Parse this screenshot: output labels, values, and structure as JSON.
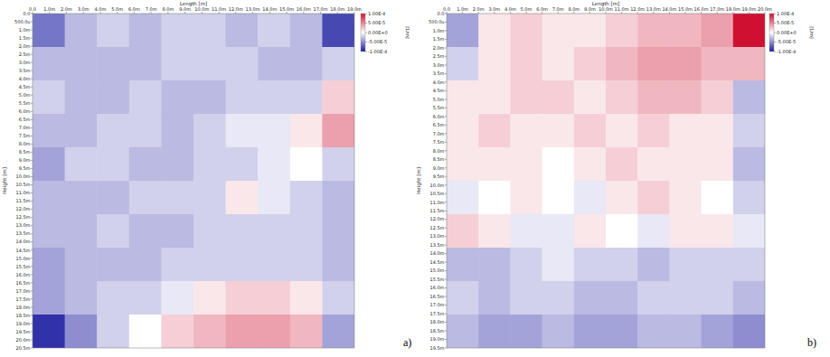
{
  "chart_data": [
    {
      "type": "heatmap",
      "panel": "a)",
      "x_label": "Length [m]",
      "y_label": "Height [m]",
      "xlim": [
        0,
        19
      ],
      "ylim": [
        0,
        20.5
      ],
      "xticks": [
        {
          "value": 0,
          "label": "0.0"
        },
        {
          "value": 1,
          "label": "1.0m"
        },
        {
          "value": 2,
          "label": "2.0m"
        },
        {
          "value": 3,
          "label": "3.0m"
        },
        {
          "value": 4,
          "label": "4.0m"
        },
        {
          "value": 5,
          "label": "5.0m"
        },
        {
          "value": 6,
          "label": "6.0m"
        },
        {
          "value": 7,
          "label": "7.0m"
        },
        {
          "value": 8,
          "label": "8.0m"
        },
        {
          "value": 9,
          "label": "9.0m"
        },
        {
          "value": 10,
          "label": "10.0m"
        },
        {
          "value": 11,
          "label": "11.0m"
        },
        {
          "value": 12,
          "label": "12.0m"
        },
        {
          "value": 13,
          "label": "13.0m"
        },
        {
          "value": 14,
          "label": "14.0m"
        },
        {
          "value": 15,
          "label": "15.0m"
        },
        {
          "value": 16,
          "label": "16.0m"
        },
        {
          "value": 17,
          "label": "17.0m"
        },
        {
          "value": 18,
          "label": "18.0m"
        },
        {
          "value": 19,
          "label": "19.0m"
        }
      ],
      "yticks": [
        {
          "value": 0,
          "label": "0.0"
        },
        {
          "value": 0.5,
          "label": "500.0u"
        },
        {
          "value": 1,
          "label": "1.0m"
        },
        {
          "value": 1.5,
          "label": "1.5m"
        },
        {
          "value": 2,
          "label": "2.0m"
        },
        {
          "value": 2.5,
          "label": "2.5m"
        },
        {
          "value": 3,
          "label": "3.0m"
        },
        {
          "value": 3.5,
          "label": "3.5m"
        },
        {
          "value": 4,
          "label": "4.0m"
        },
        {
          "value": 4.5,
          "label": "4.5m"
        },
        {
          "value": 5,
          "label": "5.0m"
        },
        {
          "value": 5.5,
          "label": "5.5m"
        },
        {
          "value": 6,
          "label": "6.0m"
        },
        {
          "value": 6.5,
          "label": "6.5m"
        },
        {
          "value": 7,
          "label": "7.0m"
        },
        {
          "value": 7.5,
          "label": "7.5m"
        },
        {
          "value": 8,
          "label": "8.0m"
        },
        {
          "value": 8.5,
          "label": "8.5m"
        },
        {
          "value": 9,
          "label": "9.0m"
        },
        {
          "value": 9.5,
          "label": "9.5m"
        },
        {
          "value": 10,
          "label": "10.0m"
        },
        {
          "value": 10.5,
          "label": "10.5m"
        },
        {
          "value": 11,
          "label": "11.0m"
        },
        {
          "value": 11.5,
          "label": "11.5m"
        },
        {
          "value": 12,
          "label": "12.0m"
        },
        {
          "value": 12.5,
          "label": "12.5m"
        },
        {
          "value": 13,
          "label": "13.0m"
        },
        {
          "value": 13.5,
          "label": "13.5m"
        },
        {
          "value": 14,
          "label": "14.0m"
        },
        {
          "value": 14.5,
          "label": "14.5m"
        },
        {
          "value": 15,
          "label": "15.0m"
        },
        {
          "value": 15.5,
          "label": "15.5m"
        },
        {
          "value": 16,
          "label": "16.0m"
        },
        {
          "value": 16.5,
          "label": "16.5m"
        },
        {
          "value": 17,
          "label": "17.0m"
        },
        {
          "value": 17.5,
          "label": "17.5m"
        },
        {
          "value": 18,
          "label": "18.0m"
        },
        {
          "value": 18.5,
          "label": "18.5m"
        },
        {
          "value": 19,
          "label": "19.0m"
        },
        {
          "value": 19.5,
          "label": "19.5m"
        },
        {
          "value": 20,
          "label": "20.0m"
        },
        {
          "value": 20.5,
          "label": "20.5m"
        }
      ],
      "colorbar": {
        "label": "[1/m]",
        "range": [
          -0.0001,
          0.0001
        ],
        "ticks": [
          {
            "value": 0.0001,
            "label": "1.00E-4"
          },
          {
            "value": 5e-05,
            "label": "5.00E-5"
          },
          {
            "value": 0,
            "label": "0.00E+0"
          },
          {
            "value": -5e-05,
            "label": "-5.00E-5"
          },
          {
            "value": -0.0001,
            "label": "-1.00E-4"
          }
        ]
      },
      "cells": [
        [
          -6e-05,
          -3e-05,
          -2e-05,
          -3e-05,
          -2e-05,
          -2e-05,
          -3e-05,
          -2e-05,
          -3e-05,
          -8e-05
        ],
        [
          -3e-05,
          -3e-05,
          -3e-05,
          -3e-05,
          -2e-05,
          -2e-05,
          -2e-05,
          -3e-05,
          -3e-05,
          -2e-05
        ],
        [
          -2e-05,
          -3e-05,
          -3e-05,
          -2e-05,
          -3e-05,
          -3e-05,
          -2e-05,
          -2e-05,
          -2e-05,
          2e-05
        ],
        [
          -3e-05,
          -3e-05,
          -2e-05,
          -2e-05,
          -3e-05,
          -2e-05,
          -1e-05,
          -1e-05,
          1e-05,
          4e-05
        ],
        [
          -4e-05,
          -2e-05,
          -2e-05,
          -3e-05,
          -3e-05,
          -2e-05,
          -2e-05,
          -1e-05,
          0,
          -2e-05
        ],
        [
          -3e-05,
          -3e-05,
          -3e-05,
          -2e-05,
          -2e-05,
          -2e-05,
          1e-05,
          -1e-05,
          -2e-05,
          -3e-05
        ],
        [
          -3e-05,
          -3e-05,
          -2e-05,
          -3e-05,
          -3e-05,
          -2e-05,
          -2e-05,
          -2e-05,
          -2e-05,
          -3e-05
        ],
        [
          -4e-05,
          -3e-05,
          -3e-05,
          -3e-05,
          -2e-05,
          -2e-05,
          -2e-05,
          -2e-05,
          -2e-05,
          -3e-05
        ],
        [
          -4e-05,
          -3e-05,
          -2e-05,
          -2e-05,
          -1e-05,
          1e-05,
          2e-05,
          2e-05,
          1e-05,
          -2e-05
        ],
        [
          -9e-05,
          -5e-05,
          -2e-05,
          0,
          2e-05,
          3e-05,
          4e-05,
          4e-05,
          3e-05,
          -4e-05
        ]
      ]
    },
    {
      "type": "heatmap",
      "panel": "b)",
      "x_label": "Length [m]",
      "y_label": "Height [m]",
      "xlim": [
        0,
        20
      ],
      "ylim": [
        0,
        19.5
      ],
      "xticks": [
        {
          "value": 0,
          "label": "0.0"
        },
        {
          "value": 1,
          "label": "1.0m"
        },
        {
          "value": 2,
          "label": "2.0m"
        },
        {
          "value": 3,
          "label": "3.0m"
        },
        {
          "value": 4,
          "label": "4.0m"
        },
        {
          "value": 5,
          "label": "5.0m"
        },
        {
          "value": 6,
          "label": "6.0m"
        },
        {
          "value": 7,
          "label": "7.0m"
        },
        {
          "value": 8,
          "label": "8.0m"
        },
        {
          "value": 9,
          "label": "9.0m"
        },
        {
          "value": 10,
          "label": "10.0m"
        },
        {
          "value": 11,
          "label": "11.0m"
        },
        {
          "value": 12,
          "label": "12.0m"
        },
        {
          "value": 13,
          "label": "13.0m"
        },
        {
          "value": 14,
          "label": "14.0m"
        },
        {
          "value": 15,
          "label": "15.0m"
        },
        {
          "value": 16,
          "label": "16.0m"
        },
        {
          "value": 17,
          "label": "17.0m"
        },
        {
          "value": 18,
          "label": "18.0m"
        },
        {
          "value": 19,
          "label": "19.0m"
        },
        {
          "value": 20,
          "label": "20.0m"
        }
      ],
      "yticks": [
        {
          "value": 0,
          "label": "0.0"
        },
        {
          "value": 0.5,
          "label": "500.0u"
        },
        {
          "value": 1,
          "label": "1.0m"
        },
        {
          "value": 1.5,
          "label": "1.5m"
        },
        {
          "value": 2,
          "label": "2.0m"
        },
        {
          "value": 2.5,
          "label": "2.5m"
        },
        {
          "value": 3,
          "label": "3.0m"
        },
        {
          "value": 3.5,
          "label": "3.5m"
        },
        {
          "value": 4,
          "label": "4.0m"
        },
        {
          "value": 4.5,
          "label": "4.5m"
        },
        {
          "value": 5,
          "label": "5.0m"
        },
        {
          "value": 5.5,
          "label": "5.5m"
        },
        {
          "value": 6,
          "label": "6.0m"
        },
        {
          "value": 6.5,
          "label": "6.5m"
        },
        {
          "value": 7,
          "label": "7.0m"
        },
        {
          "value": 7.5,
          "label": "7.5m"
        },
        {
          "value": 8,
          "label": "8.0m"
        },
        {
          "value": 8.5,
          "label": "8.5m"
        },
        {
          "value": 9,
          "label": "9.0m"
        },
        {
          "value": 9.5,
          "label": "9.5m"
        },
        {
          "value": 10,
          "label": "10.0m"
        },
        {
          "value": 10.5,
          "label": "10.5m"
        },
        {
          "value": 11,
          "label": "11.0m"
        },
        {
          "value": 11.5,
          "label": "11.5m"
        },
        {
          "value": 12,
          "label": "12.0m"
        },
        {
          "value": 12.5,
          "label": "12.5m"
        },
        {
          "value": 13,
          "label": "13.0m"
        },
        {
          "value": 13.5,
          "label": "13.5m"
        },
        {
          "value": 14,
          "label": "14.0m"
        },
        {
          "value": 14.5,
          "label": "14.5m"
        },
        {
          "value": 15,
          "label": "15.0m"
        },
        {
          "value": 15.5,
          "label": "15.5m"
        },
        {
          "value": 16,
          "label": "16.0m"
        },
        {
          "value": 16.5,
          "label": "16.5m"
        },
        {
          "value": 17,
          "label": "17.0m"
        },
        {
          "value": 17.5,
          "label": "17.5m"
        },
        {
          "value": 18,
          "label": "18.0m"
        },
        {
          "value": 18.5,
          "label": "18.5m"
        },
        {
          "value": 19,
          "label": "19.0m"
        },
        {
          "value": 19.5,
          "label": "19.5m"
        }
      ],
      "colorbar": {
        "label": "[1/m]",
        "range": [
          -0.0001,
          0.0001
        ],
        "ticks": [
          {
            "value": 0.0001,
            "label": "1.00E-4"
          },
          {
            "value": 5e-05,
            "label": "5.00E-5"
          },
          {
            "value": 0,
            "label": "0.00E+0"
          },
          {
            "value": -5e-05,
            "label": "-5.00E-5"
          },
          {
            "value": -0.0001,
            "label": "-1.00E-4"
          }
        ]
      },
      "cells": [
        [
          -4e-05,
          1e-05,
          2e-05,
          1e-05,
          1e-05,
          2e-05,
          3e-05,
          3e-05,
          4e-05,
          0.0001
        ],
        [
          -2e-05,
          1e-05,
          2e-05,
          1e-05,
          2e-05,
          3e-05,
          4e-05,
          4e-05,
          3e-05,
          3e-05
        ],
        [
          1e-05,
          1e-05,
          2e-05,
          2e-05,
          1e-05,
          2e-05,
          3e-05,
          3e-05,
          2e-05,
          -3e-05
        ],
        [
          1e-05,
          2e-05,
          1e-05,
          1e-05,
          2e-05,
          1e-05,
          2e-05,
          1e-05,
          1e-05,
          -2e-05
        ],
        [
          1e-05,
          1e-05,
          1e-05,
          0,
          1e-05,
          2e-05,
          1e-05,
          1e-05,
          1e-05,
          -3e-05
        ],
        [
          -1e-05,
          0,
          1e-05,
          0,
          -1e-05,
          1e-05,
          2e-05,
          1e-05,
          0,
          -2e-05
        ],
        [
          2e-05,
          1e-05,
          -1e-05,
          -1e-05,
          1e-05,
          0,
          -1e-05,
          1e-05,
          1e-05,
          -1e-05
        ],
        [
          -3e-05,
          -3e-05,
          -2e-05,
          -1e-05,
          -2e-05,
          -2e-05,
          -3e-05,
          -2e-05,
          -2e-05,
          -2e-05
        ],
        [
          -2e-05,
          -3e-05,
          -2e-05,
          -2e-05,
          -3e-05,
          -3e-05,
          -2e-05,
          -2e-05,
          -2e-05,
          -3e-05
        ],
        [
          -3e-05,
          -4e-05,
          -4e-05,
          -3e-05,
          -4e-05,
          -4e-05,
          -3e-05,
          -3e-05,
          -4e-05,
          -5e-05
        ]
      ]
    }
  ]
}
